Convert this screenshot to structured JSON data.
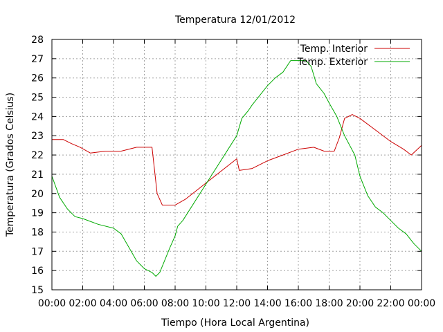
{
  "chart_data": {
    "type": "line",
    "title": "Temperatura 12/01/2012",
    "xlabel": "Tiempo (Hora Local Argentina)",
    "ylabel": "Temperatura (Grados Celsius)",
    "x_ticks": [
      "00:00",
      "02:00",
      "04:00",
      "06:00",
      "08:00",
      "10:00",
      "12:00",
      "14:00",
      "16:00",
      "18:00",
      "20:00",
      "22:00",
      "00:00"
    ],
    "y_ticks": [
      "15",
      "16",
      "17",
      "18",
      "19",
      "20",
      "21",
      "22",
      "23",
      "24",
      "25",
      "26",
      "27",
      "28"
    ],
    "xlim": [
      "00:00",
      "24:00"
    ],
    "ylim": [
      15,
      28
    ],
    "grid": true,
    "legend_position": "top-right",
    "series": [
      {
        "name": "Temp. Interior",
        "color": "#cc0000",
        "points": [
          [
            "00:00",
            22.8
          ],
          [
            "00:45",
            22.8
          ],
          [
            "01:15",
            22.6
          ],
          [
            "01:50",
            22.4
          ],
          [
            "02:30",
            22.1
          ],
          [
            "03:30",
            22.2
          ],
          [
            "04:30",
            22.2
          ],
          [
            "05:30",
            22.4
          ],
          [
            "06:30",
            22.4
          ],
          [
            "06:50",
            20.0
          ],
          [
            "07:10",
            19.4
          ],
          [
            "08:00",
            19.4
          ],
          [
            "08:40",
            19.7
          ],
          [
            "12:00",
            21.8
          ],
          [
            "12:10",
            21.2
          ],
          [
            "13:00",
            21.3
          ],
          [
            "14:00",
            21.7
          ],
          [
            "15:00",
            22.0
          ],
          [
            "16:00",
            22.3
          ],
          [
            "17:00",
            22.4
          ],
          [
            "17:40",
            22.2
          ],
          [
            "18:20",
            22.2
          ],
          [
            "18:40",
            22.9
          ],
          [
            "19:00",
            23.9
          ],
          [
            "19:30",
            24.1
          ],
          [
            "20:00",
            23.9
          ],
          [
            "21:00",
            23.3
          ],
          [
            "22:00",
            22.7
          ],
          [
            "22:50",
            22.3
          ],
          [
            "23:20",
            22.0
          ],
          [
            "24:00",
            22.5
          ]
        ]
      },
      {
        "name": "Temp. Exterior",
        "color": "#00aa00",
        "points": [
          [
            "00:00",
            20.9
          ],
          [
            "00:30",
            19.8
          ],
          [
            "01:00",
            19.2
          ],
          [
            "01:30",
            18.8
          ],
          [
            "02:00",
            18.7
          ],
          [
            "03:00",
            18.4
          ],
          [
            "04:00",
            18.2
          ],
          [
            "04:30",
            17.9
          ],
          [
            "05:00",
            17.2
          ],
          [
            "05:30",
            16.5
          ],
          [
            "06:00",
            16.1
          ],
          [
            "06:30",
            15.9
          ],
          [
            "06:45",
            15.7
          ],
          [
            "07:00",
            15.9
          ],
          [
            "07:40",
            17.2
          ],
          [
            "08:00",
            17.8
          ],
          [
            "08:10",
            18.3
          ],
          [
            "08:30",
            18.6
          ],
          [
            "12:00",
            23.0
          ],
          [
            "12:20",
            23.9
          ],
          [
            "12:45",
            24.3
          ],
          [
            "13:00",
            24.6
          ],
          [
            "13:30",
            25.1
          ],
          [
            "14:00",
            25.6
          ],
          [
            "14:30",
            26.0
          ],
          [
            "15:00",
            26.3
          ],
          [
            "15:30",
            26.9
          ],
          [
            "16:00",
            26.9
          ],
          [
            "16:30",
            26.9
          ],
          [
            "16:50",
            26.6
          ],
          [
            "17:10",
            25.7
          ],
          [
            "17:40",
            25.2
          ],
          [
            "18:00",
            24.7
          ],
          [
            "18:30",
            24.0
          ],
          [
            "19:00",
            23.0
          ],
          [
            "19:40",
            22.0
          ],
          [
            "20:00",
            20.9
          ],
          [
            "20:30",
            19.9
          ],
          [
            "21:00",
            19.3
          ],
          [
            "21:30",
            19.0
          ],
          [
            "22:00",
            18.6
          ],
          [
            "22:30",
            18.2
          ],
          [
            "23:00",
            17.9
          ],
          [
            "23:30",
            17.4
          ],
          [
            "24:00",
            17.0
          ]
        ]
      }
    ]
  }
}
